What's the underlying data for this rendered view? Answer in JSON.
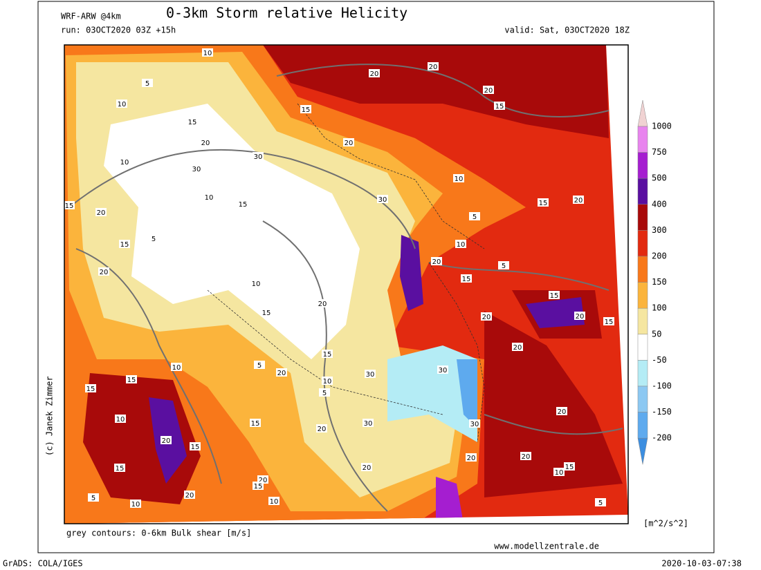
{
  "header": {
    "model": "WRF-ARW @4km",
    "title": "0-3km Storm relative Helicity",
    "run": "run: 03OCT2020 03Z +15h",
    "valid": "valid: Sat, 03OCT2020 18Z"
  },
  "map": {
    "credit": "(c) Janek Zimmer",
    "contour_note": "grey contours: 0-6km Bulk shear [m/s]",
    "website": "www.modellzentrale.de",
    "contour_labels": [
      10,
      5,
      10,
      15,
      20,
      15,
      20,
      20,
      20,
      15,
      20,
      10,
      30,
      30,
      10,
      15,
      20,
      15,
      20,
      10,
      15,
      30,
      5,
      15,
      5,
      20,
      10,
      20,
      10,
      5,
      15,
      15,
      20,
      15,
      15,
      20,
      20,
      20,
      10,
      15,
      20,
      5,
      30,
      30,
      10,
      5,
      15,
      15,
      10,
      20,
      15,
      15,
      20,
      30,
      30,
      20,
      20,
      20,
      15,
      10,
      15,
      20,
      20,
      15,
      20,
      10,
      5,
      10,
      5
    ]
  },
  "legend": {
    "levels": [
      1000,
      750,
      500,
      400,
      300,
      200,
      150,
      100,
      50,
      -50,
      -100,
      -150,
      -200
    ],
    "colors": [
      "#f0d2d2",
      "#e884ee",
      "#a51ed0",
      "#5a0fa0",
      "#a80a0a",
      "#e22a10",
      "#f8781a",
      "#fbb43c",
      "#f5e6a0",
      "#ffffff",
      "#b4ecf5",
      "#8cc8f2",
      "#5eaaee",
      "#3c8ee0"
    ],
    "unit": "[m^2/s^2]"
  },
  "footer": {
    "software": "GrADS: COLA/IGES",
    "timestamp": "2020-10-03-07:38"
  }
}
